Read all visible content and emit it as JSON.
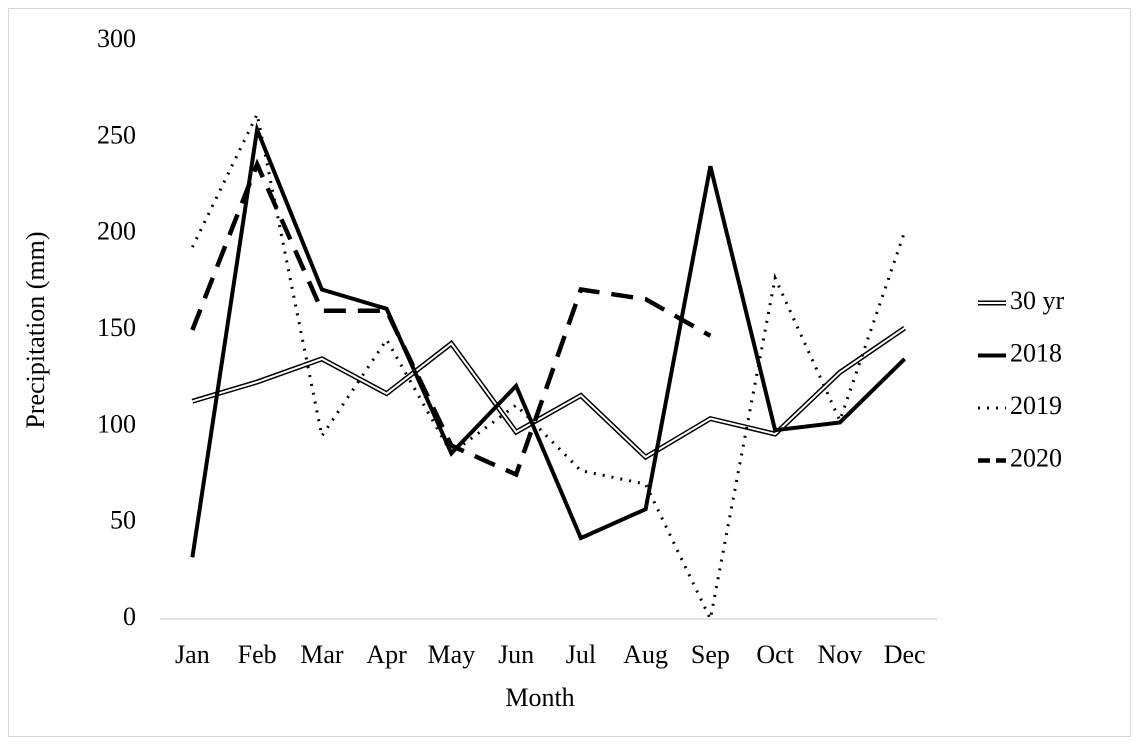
{
  "chart_data": {
    "type": "line",
    "categories": [
      "Jan",
      "Feb",
      "Mar",
      "Apr",
      "May",
      "Jun",
      "Jul",
      "Aug",
      "Sep",
      "Oct",
      "Nov",
      "Dec"
    ],
    "x_label": "Month",
    "y_label": "Precipitation (mm)",
    "ylim": [
      0,
      300
    ],
    "yticks": [
      0,
      50,
      100,
      150,
      200,
      250,
      300
    ],
    "grid": false,
    "legend": "right",
    "series": [
      {
        "name": "30 yr",
        "color": "#000000",
        "dash": "double",
        "values": [
          113,
          123,
          135,
          117,
          143,
          97,
          116,
          84,
          104,
          96,
          128,
          151
        ]
      },
      {
        "name": "2018",
        "color": "#000000",
        "dash": "solid",
        "values": [
          32,
          254,
          171,
          161,
          86,
          121,
          42,
          57,
          235,
          98,
          102,
          135
        ]
      },
      {
        "name": "2019",
        "color": "#000000",
        "dash": "dotted",
        "values": [
          193,
          262,
          95,
          145,
          86,
          111,
          77,
          70,
          0,
          177,
          103,
          201
        ]
      },
      {
        "name": "2020",
        "color": "#000000",
        "dash": "dashed",
        "values": [
          150,
          236,
          160,
          160,
          90,
          75,
          171,
          166,
          147,
          null,
          null,
          null
        ]
      }
    ]
  }
}
